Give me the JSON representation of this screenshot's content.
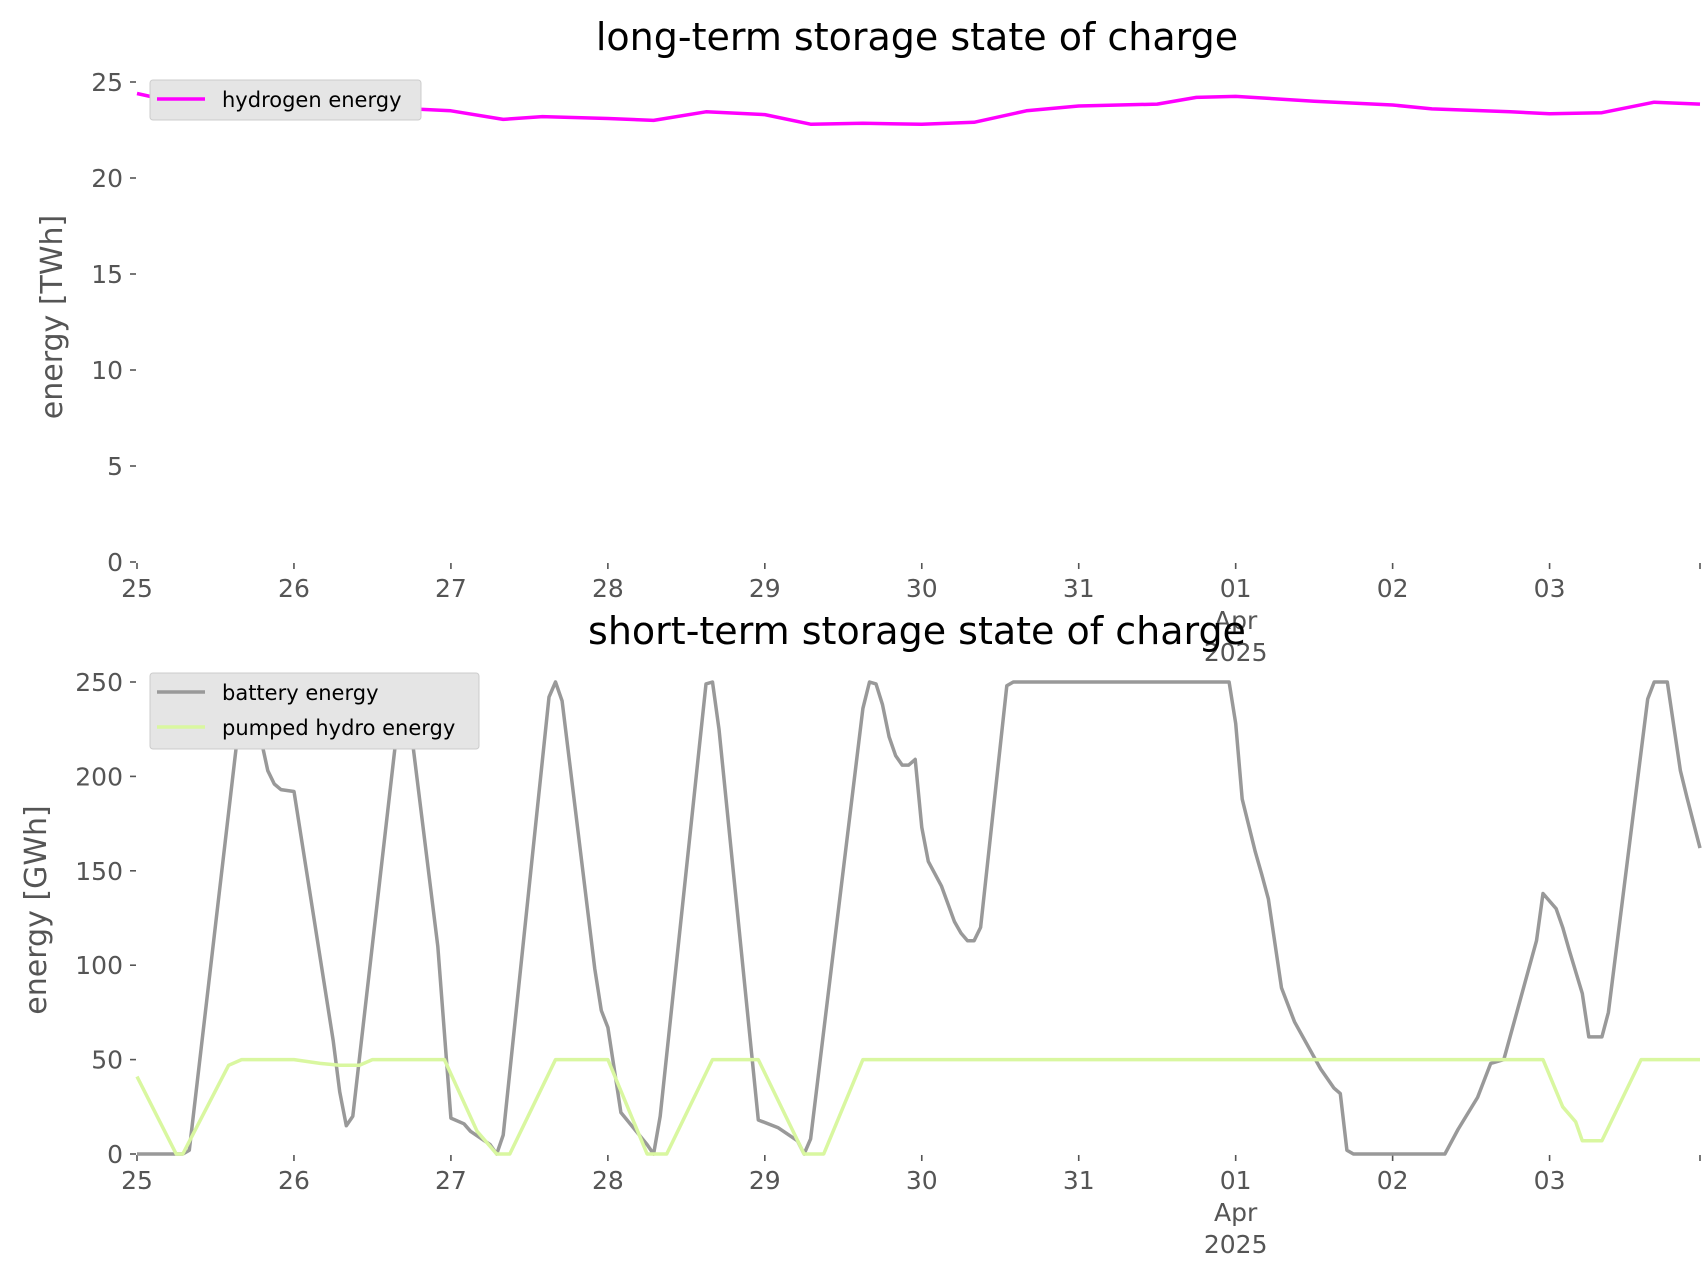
{
  "chart_data": [
    {
      "type": "line",
      "title": "long-term storage state of charge",
      "xlabel": "",
      "ylabel": "energy [TWh]",
      "ylim": [
        0,
        25
      ],
      "yticks": [
        0,
        5,
        10,
        15,
        20,
        25
      ],
      "xlim": [
        "2025-03-25",
        "2025-04-03 23:00"
      ],
      "xticks": [
        {
          "day": "2025-03-25",
          "label": "25"
        },
        {
          "day": "2025-03-26",
          "label": "26"
        },
        {
          "day": "2025-03-27",
          "label": "27"
        },
        {
          "day": "2025-03-28",
          "label": "28"
        },
        {
          "day": "2025-03-29",
          "label": "29"
        },
        {
          "day": "2025-03-30",
          "label": "30"
        },
        {
          "day": "2025-03-31",
          "label": "31"
        },
        {
          "day": "2025-04-01",
          "label": "01",
          "sub": [
            "Apr",
            "2025"
          ]
        },
        {
          "day": "2025-04-02",
          "label": "02"
        },
        {
          "day": "2025-04-03",
          "label": "03"
        }
      ],
      "grid": false,
      "legend_position": "upper-left",
      "series": [
        {
          "name": "hydrogen energy",
          "color": "#ff00ff",
          "points": [
            [
              "2025-03-25 00:00",
              24.4
            ],
            [
              "2025-03-25 06:00",
              23.95
            ],
            [
              "2025-03-25 12:00",
              23.75
            ],
            [
              "2025-03-26 00:00",
              23.85
            ],
            [
              "2025-03-26 12:00",
              23.7
            ],
            [
              "2025-03-27 00:00",
              23.5
            ],
            [
              "2025-03-27 08:00",
              23.05
            ],
            [
              "2025-03-27 14:00",
              23.2
            ],
            [
              "2025-03-28 00:00",
              23.1
            ],
            [
              "2025-03-28 07:00",
              23.0
            ],
            [
              "2025-03-28 15:00",
              23.45
            ],
            [
              "2025-03-29 00:00",
              23.3
            ],
            [
              "2025-03-29 07:00",
              22.8
            ],
            [
              "2025-03-29 15:00",
              22.85
            ],
            [
              "2025-03-30 00:00",
              22.8
            ],
            [
              "2025-03-30 08:00",
              22.9
            ],
            [
              "2025-03-30 16:00",
              23.5
            ],
            [
              "2025-03-31 00:00",
              23.75
            ],
            [
              "2025-03-31 12:00",
              23.85
            ],
            [
              "2025-03-31 18:00",
              24.2
            ],
            [
              "2025-04-01 00:00",
              24.25
            ],
            [
              "2025-04-01 12:00",
              24.0
            ],
            [
              "2025-04-02 00:00",
              23.8
            ],
            [
              "2025-04-02 06:00",
              23.6
            ],
            [
              "2025-04-02 18:00",
              23.45
            ],
            [
              "2025-04-03 00:00",
              23.35
            ],
            [
              "2025-04-03 08:00",
              23.4
            ],
            [
              "2025-04-03 16:00",
              23.95
            ],
            [
              "2025-04-03 23:00",
              23.85
            ]
          ]
        }
      ]
    },
    {
      "type": "line",
      "title": "short-term storage state of charge",
      "xlabel": "",
      "ylabel": "energy [GWh]",
      "ylim": [
        0,
        250
      ],
      "yticks": [
        0,
        50,
        100,
        150,
        200,
        250
      ],
      "xlim": [
        "2025-03-25",
        "2025-04-03 23:00"
      ],
      "xticks": [
        {
          "day": "2025-03-25",
          "label": "25"
        },
        {
          "day": "2025-03-26",
          "label": "26"
        },
        {
          "day": "2025-03-27",
          "label": "27"
        },
        {
          "day": "2025-03-28",
          "label": "28"
        },
        {
          "day": "2025-03-29",
          "label": "29"
        },
        {
          "day": "2025-03-30",
          "label": "30"
        },
        {
          "day": "2025-03-31",
          "label": "31"
        },
        {
          "day": "2025-04-01",
          "label": "01",
          "sub": [
            "Apr",
            "2025"
          ]
        },
        {
          "day": "2025-04-02",
          "label": "02"
        },
        {
          "day": "2025-04-03",
          "label": "03"
        }
      ],
      "grid": false,
      "legend_position": "upper-left",
      "series": [
        {
          "name": "battery energy",
          "color": "#999999",
          "points": [
            [
              "2025-03-25 00:00",
              0
            ],
            [
              "2025-03-25 07:00",
              0
            ],
            [
              "2025-03-25 08:00",
              2
            ],
            [
              "2025-03-25 16:00",
              240
            ],
            [
              "2025-03-25 17:00",
              250
            ],
            [
              "2025-03-25 18:00",
              235
            ],
            [
              "2025-03-25 20:00",
              203
            ],
            [
              "2025-03-25 21:00",
              196
            ],
            [
              "2025-03-25 22:00",
              193
            ],
            [
              "2025-03-26 00:00",
              192
            ],
            [
              "2025-03-26 06:00",
              60
            ],
            [
              "2025-03-26 07:00",
              33
            ],
            [
              "2025-03-26 08:00",
              15
            ],
            [
              "2025-03-26 09:00",
              20
            ],
            [
              "2025-03-26 16:00",
              232
            ],
            [
              "2025-03-26 17:00",
              250
            ],
            [
              "2025-03-26 22:00",
              110
            ],
            [
              "2025-03-27 00:00",
              19
            ],
            [
              "2025-03-27 02:00",
              16
            ],
            [
              "2025-03-27 03:00",
              12
            ],
            [
              "2025-03-27 06:00",
              5
            ],
            [
              "2025-03-27 07:00",
              0
            ],
            [
              "2025-03-27 08:00",
              10
            ],
            [
              "2025-03-27 15:00",
              242
            ],
            [
              "2025-03-27 16:00",
              250
            ],
            [
              "2025-03-27 17:00",
              240
            ],
            [
              "2025-03-27 22:00",
              98
            ],
            [
              "2025-03-27 23:00",
              76
            ],
            [
              "2025-03-28 00:00",
              67
            ],
            [
              "2025-03-28 02:00",
              22
            ],
            [
              "2025-03-28 06:00",
              5
            ],
            [
              "2025-03-28 07:00",
              0
            ],
            [
              "2025-03-28 08:00",
              20
            ],
            [
              "2025-03-28 15:00",
              249
            ],
            [
              "2025-03-28 16:00",
              250
            ],
            [
              "2025-03-28 17:00",
              225
            ],
            [
              "2025-03-28 23:00",
              18
            ],
            [
              "2025-03-29 02:00",
              14
            ],
            [
              "2025-03-29 05:00",
              7
            ],
            [
              "2025-03-29 06:00",
              0
            ],
            [
              "2025-03-29 07:00",
              8
            ],
            [
              "2025-03-29 15:00",
              236
            ],
            [
              "2025-03-29 16:00",
              250
            ],
            [
              "2025-03-29 17:00",
              249
            ],
            [
              "2025-03-29 18:00",
              238
            ],
            [
              "2025-03-29 19:00",
              221
            ],
            [
              "2025-03-29 20:00",
              211
            ],
            [
              "2025-03-29 21:00",
              206
            ],
            [
              "2025-03-29 22:00",
              206
            ],
            [
              "2025-03-29 23:00",
              209
            ],
            [
              "2025-03-30 00:00",
              173
            ],
            [
              "2025-03-30 01:00",
              155
            ],
            [
              "2025-03-30 03:00",
              142
            ],
            [
              "2025-03-30 05:00",
              123
            ],
            [
              "2025-03-30 06:00",
              117
            ],
            [
              "2025-03-30 07:00",
              113
            ],
            [
              "2025-03-30 08:00",
              113
            ],
            [
              "2025-03-30 09:00",
              120
            ],
            [
              "2025-03-30 13:00",
              248
            ],
            [
              "2025-03-30 14:00",
              250
            ],
            [
              "2025-03-31 00:00",
              250
            ],
            [
              "2025-03-31 23:00",
              250
            ],
            [
              "2025-04-01 00:00",
              228
            ],
            [
              "2025-04-01 01:00",
              188
            ],
            [
              "2025-04-01 03:00",
              160
            ],
            [
              "2025-04-01 04:00",
              148
            ],
            [
              "2025-04-01 05:00",
              135
            ],
            [
              "2025-04-01 07:00",
              88
            ],
            [
              "2025-04-01 09:00",
              70
            ],
            [
              "2025-04-01 13:00",
              45
            ],
            [
              "2025-04-01 15:00",
              35
            ],
            [
              "2025-04-01 16:00",
              32
            ],
            [
              "2025-04-01 17:00",
              2
            ],
            [
              "2025-04-01 18:00",
              0
            ],
            [
              "2025-04-02 08:00",
              0
            ],
            [
              "2025-04-02 10:00",
              13
            ],
            [
              "2025-04-02 13:00",
              30
            ],
            [
              "2025-04-02 15:00",
              48
            ],
            [
              "2025-04-02 17:00",
              50
            ],
            [
              "2025-04-02 22:00",
              113
            ],
            [
              "2025-04-02 23:00",
              138
            ],
            [
              "2025-04-03 01:00",
              130
            ],
            [
              "2025-04-03 02:00",
              120
            ],
            [
              "2025-04-03 03:00",
              108
            ],
            [
              "2025-04-03 05:00",
              85
            ],
            [
              "2025-04-03 06:00",
              62
            ],
            [
              "2025-04-03 08:00",
              62
            ],
            [
              "2025-04-03 09:00",
              75
            ],
            [
              "2025-04-03 15:00",
              241
            ],
            [
              "2025-04-03 16:00",
              250
            ],
            [
              "2025-04-03 17:00",
              250
            ],
            [
              "2025-04-03 18:00",
              250
            ],
            [
              "2025-04-03 20:00",
              203
            ],
            [
              "2025-04-03 21:00",
              189
            ],
            [
              "2025-04-03 23:00",
              162
            ]
          ]
        },
        {
          "name": "pumped hydro energy",
          "color": "#d9f7a0",
          "points": [
            [
              "2025-03-25 00:00",
              41
            ],
            [
              "2025-03-25 06:00",
              0
            ],
            [
              "2025-03-25 07:00",
              0
            ],
            [
              "2025-03-25 14:00",
              47
            ],
            [
              "2025-03-25 16:00",
              50
            ],
            [
              "2025-03-26 00:00",
              50
            ],
            [
              "2025-03-26 04:00",
              48
            ],
            [
              "2025-03-26 07:00",
              47
            ],
            [
              "2025-03-26 10:00",
              47
            ],
            [
              "2025-03-26 12:00",
              50
            ],
            [
              "2025-03-26 23:00",
              50
            ],
            [
              "2025-03-27 04:00",
              12
            ],
            [
              "2025-03-27 07:00",
              0
            ],
            [
              "2025-03-27 09:00",
              0
            ],
            [
              "2025-03-27 16:00",
              50
            ],
            [
              "2025-03-28 00:00",
              50
            ],
            [
              "2025-03-28 06:00",
              0
            ],
            [
              "2025-03-28 09:00",
              0
            ],
            [
              "2025-03-28 16:00",
              50
            ],
            [
              "2025-03-28 23:00",
              50
            ],
            [
              "2025-03-29 06:00",
              0
            ],
            [
              "2025-03-29 09:00",
              0
            ],
            [
              "2025-03-29 15:00",
              50
            ],
            [
              "2025-04-02 23:00",
              50
            ],
            [
              "2025-04-03 02:00",
              25
            ],
            [
              "2025-04-03 04:00",
              17
            ],
            [
              "2025-04-03 05:00",
              7
            ],
            [
              "2025-04-03 08:00",
              7
            ],
            [
              "2025-04-03 14:00",
              50
            ],
            [
              "2025-04-03 23:00",
              50
            ]
          ]
        }
      ]
    }
  ]
}
